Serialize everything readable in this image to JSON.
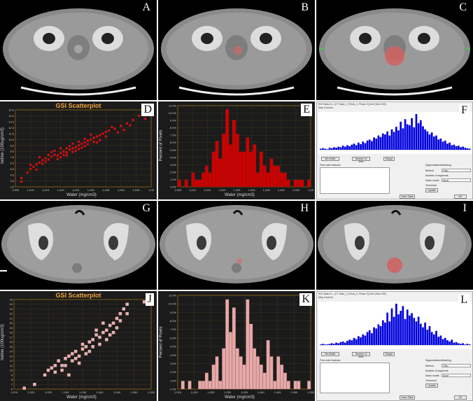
{
  "panels": {
    "A": {
      "letter": "A"
    },
    "B": {
      "letter": "B"
    },
    "C": {
      "letter": "C"
    },
    "D": {
      "letter": "D"
    },
    "E": {
      "letter": "E"
    },
    "F": {
      "letter": "F"
    },
    "G": {
      "letter": "G"
    },
    "H": {
      "letter": "H"
    },
    "I": {
      "letter": "I"
    },
    "J": {
      "letter": "J"
    },
    "K": {
      "letter": "K"
    },
    "L": {
      "letter": "L"
    }
  },
  "colors": {
    "scatter_top": "#cc1010",
    "hist_top": "#cc0000",
    "blue_hist": "#0000dd",
    "scatter_bottom": "#e8b0b0",
    "hist_bottom": "#e8a8a8",
    "title": "#f0a640"
  },
  "scatter_top": {
    "title": "GSI Scatterplot",
    "xlabel": "Water (mg/cm3)",
    "ylabel": "Iodine (100ug/cm3)",
    "xticks": [
      "1,005",
      "1,010",
      "1,015",
      "1,020",
      "1,025",
      "1,030",
      "1,035",
      "1,040",
      "1,045",
      "1,05"
    ],
    "yticks": [
      "2.5",
      "3.5",
      "4.5",
      "5.5",
      "6.5",
      "7.5",
      "8.5",
      "9.5",
      "10.5",
      "11.5",
      "12.5",
      "13.5",
      "14.5",
      "15.5"
    ]
  },
  "hist_top": {
    "xlabel": "Water (mg/cm3)",
    "ylabel": "Percent of Pixels",
    "xticks": [
      "1,005",
      "1,010",
      "1,015",
      "1,020",
      "1,025",
      "1,030",
      "1,035",
      "1,040",
      "1,045",
      "1,05"
    ],
    "yticks": [
      "0.0%",
      "1.0%",
      "2.0%",
      "3.0%",
      "4.0%",
      "5.0%",
      "6.0%",
      "7.0%",
      "8.0%",
      "9.0%",
      "10.0%",
      "11.0%"
    ]
  },
  "scatter_bottom": {
    "title": "GSI Scatterplot",
    "xlabel": "Water (mg/cm3)",
    "ylabel": "Iodine (100ug/cm3)",
    "xticks": [
      "1,015",
      "1,020",
      "1,025",
      "1,030",
      "1,035",
      "1,040",
      "1,045",
      "1,050",
      "1,055"
    ],
    "yticks": [
      "6",
      "7",
      "8",
      "9",
      "10",
      "11",
      "12",
      "13",
      "14",
      "15",
      "16",
      "17",
      "18",
      "19",
      "20",
      "21",
      "22",
      "23",
      "24",
      "25"
    ]
  },
  "hist_bottom": {
    "xlabel": "Water (mg/cm3)",
    "ylabel": "Percent of Pixels",
    "xticks": [
      "1,015",
      "1,020",
      "1,025",
      "1,030",
      "1,035",
      "1,040",
      "1,045",
      "1,050",
      "1,055"
    ],
    "yticks": [
      "0.0%",
      "1.0%",
      "2.0%",
      "3.0%",
      "4.0%",
      "5.0%",
      "6.0%",
      "7.0%",
      "8.0%",
      "9.0%",
      "10.0%",
      "11.0%"
    ]
  },
  "chart_data": [
    {
      "type": "scatter",
      "title": "GSI Scatterplot",
      "xlabel": "Water (mg/cm3)",
      "ylabel": "Iodine (100ug/cm3)",
      "xlim": [
        1005,
        1050
      ],
      "ylim": [
        2.5,
        15.5
      ],
      "points": [
        [
          1007,
          3.4
        ],
        [
          1007,
          4.0
        ],
        [
          1009,
          4.9
        ],
        [
          1010,
          5.5
        ],
        [
          1011,
          5.9
        ],
        [
          1012,
          6.3
        ],
        [
          1013,
          6.6
        ],
        [
          1014,
          7.0
        ],
        [
          1015,
          7.3
        ],
        [
          1016,
          7.1
        ],
        [
          1017,
          7.6
        ],
        [
          1018,
          7.9
        ],
        [
          1019,
          7.8
        ],
        [
          1020,
          8.2
        ],
        [
          1021,
          8.5
        ],
        [
          1022,
          8.3
        ],
        [
          1023,
          8.8
        ],
        [
          1024,
          9.0
        ],
        [
          1025,
          9.2
        ],
        [
          1026,
          9.5
        ],
        [
          1027,
          9.8
        ],
        [
          1028,
          10.0
        ],
        [
          1029,
          10.3
        ],
        [
          1030,
          10.5
        ],
        [
          1031,
          10.8
        ],
        [
          1032,
          11.0
        ],
        [
          1033,
          11.2
        ],
        [
          1034,
          11.5
        ],
        [
          1035,
          11.8
        ],
        [
          1036,
          12.0
        ],
        [
          1038,
          12.3
        ],
        [
          1040,
          12.8
        ],
        [
          1042,
          13.2
        ],
        [
          1044,
          13.8
        ],
        [
          1046,
          14.5
        ],
        [
          1048,
          14.0
        ],
        [
          1017,
          8.4
        ],
        [
          1019,
          7.2
        ],
        [
          1021,
          7.9
        ],
        [
          1023,
          9.4
        ],
        [
          1025,
          8.6
        ],
        [
          1027,
          9.1
        ],
        [
          1029,
          9.7
        ],
        [
          1031,
          10.1
        ],
        [
          1014,
          6.4
        ],
        [
          1016,
          7.9
        ],
        [
          1018,
          8.6
        ],
        [
          1020,
          7.5
        ],
        [
          1022,
          9.0
        ],
        [
          1024,
          8.4
        ],
        [
          1026,
          10.1
        ],
        [
          1028,
          9.4
        ],
        [
          1030,
          11.3
        ],
        [
          1033,
          10.4
        ],
        [
          1035,
          11.0
        ],
        [
          1037,
          12.6
        ],
        [
          1039,
          11.7
        ],
        [
          1041,
          12.1
        ],
        [
          1043,
          12.9
        ],
        [
          1012,
          5.4
        ],
        [
          1010,
          6.2
        ],
        [
          1013,
          7.5
        ],
        [
          1015,
          6.8
        ],
        [
          1020,
          9.0
        ],
        [
          1022,
          7.8
        ],
        [
          1024,
          9.8
        ],
        [
          1026,
          8.9
        ],
        [
          1028,
          10.6
        ],
        [
          1032,
          10.0
        ]
      ]
    },
    {
      "type": "bar",
      "xlabel": "Water (mg/cm3)",
      "ylabel": "Percent of Pixels",
      "xlim": [
        1005,
        1050
      ],
      "ylim": [
        0,
        11.5
      ],
      "values": [
        1.0,
        0,
        1.0,
        0,
        2.0,
        1.0,
        1.0,
        2.0,
        3.0,
        2.0,
        5.0,
        6.5,
        4.0,
        7.5,
        11.0,
        6.0,
        9.5,
        7.5,
        5.0,
        5.0,
        7.0,
        5.0,
        6.0,
        2.0,
        5.0,
        3.0,
        2.0,
        4.0,
        3.0,
        3.0,
        2.0,
        2.0,
        1.0,
        0,
        1.0,
        1.0,
        1.0,
        0,
        1.0
      ]
    },
    {
      "type": "bar",
      "values": [
        2,
        3,
        2,
        1,
        4,
        3,
        5,
        4,
        6,
        5,
        8,
        6,
        9,
        7,
        10,
        12,
        9,
        14,
        11,
        16,
        13,
        18,
        20,
        17,
        24,
        22,
        28,
        25,
        32,
        30,
        36,
        28,
        40,
        35,
        45,
        38,
        55,
        42,
        60,
        50,
        48,
        62,
        44,
        70,
        52,
        58,
        46,
        40,
        36,
        30,
        34,
        26,
        28,
        20,
        22,
        16,
        18,
        12,
        14,
        9,
        10,
        7,
        8,
        5,
        6,
        4,
        3,
        2
      ]
    },
    {
      "type": "scatter",
      "title": "GSI Scatterplot",
      "xlabel": "Water (mg/cm3)",
      "ylabel": "Iodine (100ug/cm3)",
      "xlim": [
        1015,
        1055
      ],
      "ylim": [
        6,
        25
      ],
      "points": [
        [
          1018,
          6.2
        ],
        [
          1024,
          9.0
        ],
        [
          1025,
          10.0
        ],
        [
          1026,
          10.5
        ],
        [
          1027,
          11.0
        ],
        [
          1027,
          9.6
        ],
        [
          1028,
          12.0
        ],
        [
          1029,
          11.0
        ],
        [
          1030,
          12.5
        ],
        [
          1030,
          11.0
        ],
        [
          1031,
          13.0
        ],
        [
          1032,
          12.0
        ],
        [
          1032,
          13.5
        ],
        [
          1033,
          14.0
        ],
        [
          1034,
          13.0
        ],
        [
          1035,
          14.5
        ],
        [
          1035,
          15.5
        ],
        [
          1036,
          15.0
        ],
        [
          1037,
          16.0
        ],
        [
          1038,
          16.5
        ],
        [
          1038,
          15.0
        ],
        [
          1039,
          17.5
        ],
        [
          1040,
          17.0
        ],
        [
          1041,
          18.0
        ],
        [
          1042,
          18.5
        ],
        [
          1043,
          17.5
        ],
        [
          1043,
          19.5
        ],
        [
          1044,
          20.0
        ],
        [
          1045,
          21.0
        ],
        [
          1046,
          20.5
        ],
        [
          1046,
          22.0
        ],
        [
          1047,
          23.0
        ],
        [
          1048,
          24.0
        ],
        [
          1053,
          24.5
        ],
        [
          1037,
          14.0
        ],
        [
          1040,
          15.5
        ],
        [
          1042,
          16.5
        ],
        [
          1044,
          18.0
        ],
        [
          1034,
          11.5
        ],
        [
          1036,
          13.5
        ],
        [
          1039,
          18.5
        ],
        [
          1041,
          20.0
        ],
        [
          1045,
          19.0
        ],
        [
          1029,
          10.0
        ],
        [
          1031,
          9.0
        ],
        [
          1033,
          12.5
        ],
        [
          1021,
          7.0
        ],
        [
          1048,
          22.0
        ]
      ]
    },
    {
      "type": "bar",
      "xlabel": "Water (mg/cm3)",
      "ylabel": "Percent of Pixels",
      "xlim": [
        1015,
        1055
      ],
      "ylim": [
        0,
        11.5
      ],
      "values": [
        0,
        1.0,
        0,
        1.0,
        0,
        0,
        1.0,
        1.0,
        2.0,
        1.0,
        3.0,
        4.0,
        1.0,
        5.0,
        11.0,
        7.0,
        10.0,
        5.0,
        4.0,
        3.0,
        11.0,
        8.0,
        5.0,
        4.0,
        3.0,
        2.0,
        6.0,
        4.0,
        1.0,
        4.0,
        3.0,
        2.0,
        1.0,
        0,
        1.0,
        1.0,
        0,
        0,
        1.0
      ]
    },
    {
      "type": "bar",
      "values": [
        1,
        2,
        1,
        1,
        2,
        3,
        2,
        4,
        3,
        5,
        6,
        4,
        7,
        9,
        8,
        12,
        10,
        15,
        13,
        18,
        16,
        22,
        25,
        20,
        30,
        28,
        35,
        32,
        42,
        38,
        55,
        40,
        62,
        48,
        70,
        52,
        58,
        66,
        44,
        60,
        50,
        54,
        46,
        40,
        48,
        36,
        30,
        38,
        26,
        32,
        22,
        18,
        24,
        14,
        16,
        10,
        12,
        8,
        6,
        9,
        4,
        5,
        3,
        2,
        3,
        1,
        2,
        1
      ]
    }
  ],
  "softwin_top": {
    "title": "ROI Stats #1 - [CT Data_1_Pelvis_1, Phase 3] Unit (View 003)",
    "menu": "Map Controls",
    "btn1": "Bin Width",
    "btn2": "Number of Bins",
    "btn3": "Range",
    "sec1": "First order features",
    "sec2": "Segmentation/Modeling",
    "btn_save": "Save Stats",
    "btn_ok": "OK",
    "rows": [
      "Mean",
      "Median",
      "Variance",
      "Skewness",
      "Kurtosis",
      "Uniformity",
      "Entropy",
      "Energy",
      "Std Dev"
    ],
    "opt1": "Method",
    "opt2": "Number of segments",
    "opt3": "Noise model",
    "opt4": "Threshold",
    "update": "Update",
    "sel1": "Otsu",
    "sel3": "None"
  },
  "softwin_bottom": {
    "title": "ROI Stats #1 - [CT Data_1_Pelvis_2, Phase 3] Unit (View 003)",
    "menu": "Map Controls",
    "btn1": "Bin Width",
    "btn2": "Number of Bins",
    "btn3": "Range",
    "sec1": "First order features",
    "sec2": "Segmentation/Modeling",
    "btn_save": "Save Stats",
    "btn_ok": "OK",
    "rows": [
      "Mean",
      "Median",
      "Variance",
      "Skewness",
      "Kurtosis",
      "Uniformity",
      "Entropy",
      "Energy",
      "Std Dev"
    ],
    "opt1": "Method",
    "opt2": "Number of segments",
    "opt3": "Noise model",
    "opt4": "Threshold",
    "update": "Update",
    "sel1": "Otsu",
    "sel3": "None"
  }
}
